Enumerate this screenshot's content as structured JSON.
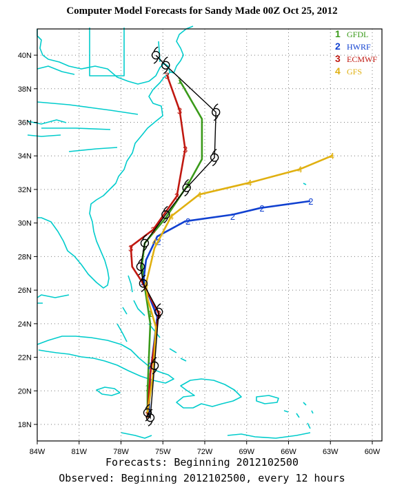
{
  "title": "Computer Model Forecasts for Sandy Made 00Z Oct 25, 2012",
  "footer": {
    "line1": "Forecasts: Beginning 2012102500",
    "line2": "Observed: Beginning 2012102500, every 12 hours"
  },
  "colors": {
    "coast": "#00cccc",
    "grid": "#777777",
    "observed": "#000000",
    "GFDL": "#3a9a1a",
    "HWRF": "#1040d0",
    "ECMWF": "#c01810",
    "GFS": "#e0b010"
  },
  "chart_data": {
    "type": "map-tracks",
    "xlim": [
      -84,
      -59
    ],
    "ylim": [
      17,
      42
    ],
    "x_ticks": [
      "84W",
      "81W",
      "78W",
      "75W",
      "72W",
      "69W",
      "66W",
      "63W",
      "60W"
    ],
    "y_ticks": [
      "18N",
      "20N",
      "22N",
      "24N",
      "26N",
      "28N",
      "30N",
      "32N",
      "34N",
      "36N",
      "38N",
      "40N"
    ],
    "legend": [
      {
        "num": "1",
        "name": "GFDL"
      },
      {
        "num": "2",
        "name": "HWRF"
      },
      {
        "num": "3",
        "name": "ECMWF"
      },
      {
        "num": "4",
        "name": "GFS"
      }
    ],
    "observed": [
      [
        -76.1,
        18.7
      ],
      [
        -75.9,
        18.4
      ],
      [
        -75.6,
        21.5
      ],
      [
        -75.3,
        24.7
      ],
      [
        -76.4,
        26.4
      ],
      [
        -76.6,
        27.4
      ],
      [
        -76.3,
        28.8
      ],
      [
        -74.8,
        30.5
      ],
      [
        -73.3,
        32.1
      ],
      [
        -71.3,
        33.9
      ],
      [
        -71.2,
        36.6
      ],
      [
        -74.8,
        39.4
      ],
      [
        -75.5,
        40.0
      ]
    ],
    "tracks": [
      {
        "model": "GFDL",
        "num": "1",
        "points": [
          [
            -76.1,
            18.6
          ],
          [
            -76.1,
            20.0
          ],
          [
            -76.0,
            22.0
          ],
          [
            -75.9,
            24.0
          ],
          [
            -76.3,
            26.2
          ],
          [
            -76.5,
            27.5
          ],
          [
            -76.3,
            28.8
          ],
          [
            -74.8,
            30.3
          ],
          [
            -73.2,
            32.3
          ],
          [
            -72.2,
            33.8
          ],
          [
            -72.2,
            36.2
          ],
          [
            -73.8,
            38.5
          ]
        ],
        "labeled": [
          [
            -76.1,
            18.6
          ],
          [
            -76.1,
            20.2
          ],
          [
            -75.9,
            24.6
          ],
          [
            -76.5,
            27.3
          ],
          [
            -73.2,
            32.3
          ],
          [
            -73.8,
            38.5
          ]
        ]
      },
      {
        "model": "HWRF",
        "num": "2",
        "points": [
          [
            -76.0,
            18.6
          ],
          [
            -75.9,
            21.0
          ],
          [
            -75.4,
            24.4
          ],
          [
            -76.4,
            26.5
          ],
          [
            -76.2,
            27.8
          ],
          [
            -75.4,
            29.2
          ],
          [
            -73.4,
            30.1
          ],
          [
            -70.0,
            30.5
          ],
          [
            -68.0,
            30.9
          ],
          [
            -64.5,
            31.3
          ]
        ],
        "labeled": [
          [
            -75.9,
            21.5
          ],
          [
            -76.4,
            26.5
          ],
          [
            -75.3,
            28.9
          ],
          [
            -73.2,
            30.1
          ],
          [
            -70.0,
            30.4
          ],
          [
            -67.9,
            30.9
          ],
          [
            -64.4,
            31.3
          ]
        ]
      },
      {
        "model": "ECMWF",
        "num": "3",
        "points": [
          [
            -76.1,
            18.6
          ],
          [
            -75.9,
            21.0
          ],
          [
            -75.3,
            24.6
          ],
          [
            -76.5,
            26.5
          ],
          [
            -77.2,
            27.4
          ],
          [
            -77.3,
            28.6
          ],
          [
            -75.7,
            29.6
          ],
          [
            -74.0,
            31.6
          ],
          [
            -73.4,
            34.4
          ],
          [
            -73.8,
            36.7
          ],
          [
            -74.7,
            38.8
          ]
        ],
        "labeled": [
          [
            -76.1,
            18.6
          ],
          [
            -75.3,
            24.6
          ],
          [
            -77.3,
            28.5
          ],
          [
            -75.7,
            29.6
          ],
          [
            -74.0,
            31.6
          ],
          [
            -73.4,
            34.4
          ],
          [
            -73.8,
            36.7
          ],
          [
            -74.7,
            38.8
          ]
        ]
      },
      {
        "model": "GFS",
        "num": "4",
        "points": [
          [
            -76.1,
            18.7
          ],
          [
            -75.7,
            21.0
          ],
          [
            -75.5,
            23.8
          ],
          [
            -76.1,
            25.5
          ],
          [
            -76.2,
            26.4
          ],
          [
            -75.6,
            28.5
          ],
          [
            -74.4,
            30.4
          ],
          [
            -72.4,
            31.7
          ],
          [
            -68.8,
            32.4
          ],
          [
            -65.2,
            33.2
          ],
          [
            -62.9,
            34.0
          ]
        ],
        "labeled": [
          [
            -76.2,
            26.4
          ],
          [
            -75.6,
            28.9
          ],
          [
            -74.4,
            30.4
          ],
          [
            -72.4,
            31.7
          ],
          [
            -68.8,
            32.4
          ],
          [
            -65.2,
            33.2
          ],
          [
            -62.9,
            34.0
          ]
        ]
      }
    ]
  }
}
